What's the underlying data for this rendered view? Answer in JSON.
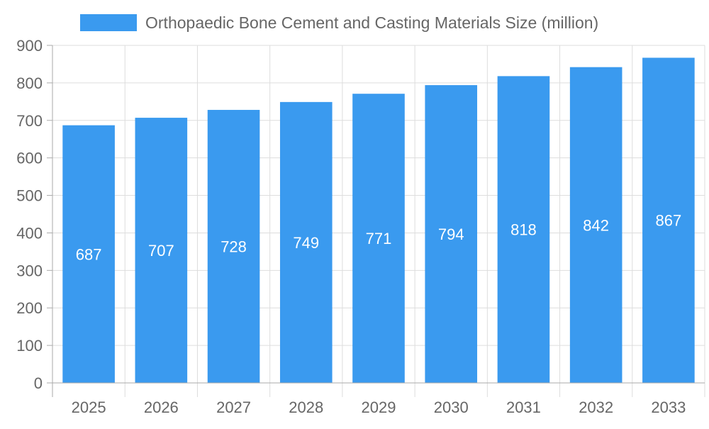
{
  "colors": {
    "bar": "#3a9aef",
    "grid": "#dddddd",
    "axis": "#aaaaaa",
    "text": "#666666",
    "data_label": "#ffffff"
  },
  "chart_data": {
    "type": "bar",
    "categories": [
      "2025",
      "2026",
      "2027",
      "2028",
      "2029",
      "2030",
      "2031",
      "2032",
      "2033"
    ],
    "series": [
      {
        "name": "Orthopaedic Bone Cement and Casting Materials Size (million)",
        "values": [
          687,
          707,
          728,
          749,
          771,
          794,
          818,
          842,
          867
        ]
      }
    ],
    "ylim": [
      0,
      900
    ],
    "yticks": [
      0,
      100,
      200,
      300,
      400,
      500,
      600,
      700,
      800,
      900
    ],
    "grid": true,
    "legend_position": "top-center",
    "data_labels": true
  }
}
